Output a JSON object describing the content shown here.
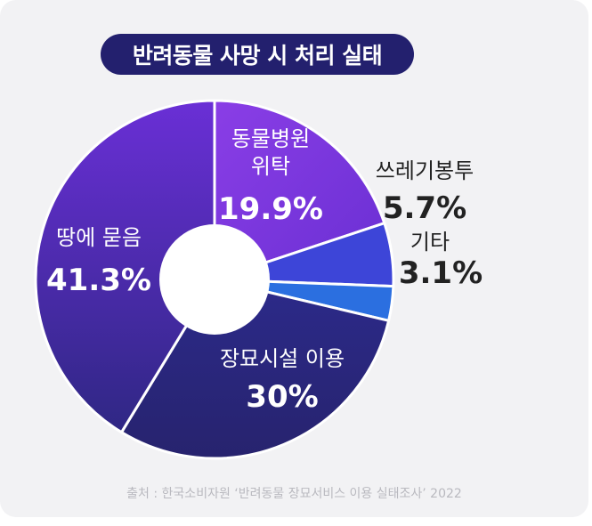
{
  "title": "반려동물 사망 시 처리 실태",
  "source": "출처 : 한국소비자원 ‘반려동물 장묘서비스 이용 실태조사’ 2022",
  "colors": {
    "background": "#f2f2f4",
    "title_bg": "#23206e",
    "hole": "#ffffff",
    "dark_text": "#222222"
  },
  "chart_data": {
    "type": "pie",
    "title": "반려동물 사망 시 처리 실태",
    "slices": [
      {
        "label": "동물병원 위탁",
        "display": "19.9%",
        "value": 19.9,
        "color": "#7533dc"
      },
      {
        "label": "쓰레기봉투",
        "display": "5.7%",
        "value": 5.7,
        "color": "#3d45d8"
      },
      {
        "label": "기타",
        "display": "3.1%",
        "value": 3.1,
        "color": "#2b6fe0"
      },
      {
        "label": "장묘시설 이용",
        "display": "30%",
        "value": 30,
        "color": "#2a2a85"
      },
      {
        "label": "땅에 묻음",
        "display": "41.3%",
        "value": 41.3,
        "color": "#4c2db0"
      }
    ]
  }
}
